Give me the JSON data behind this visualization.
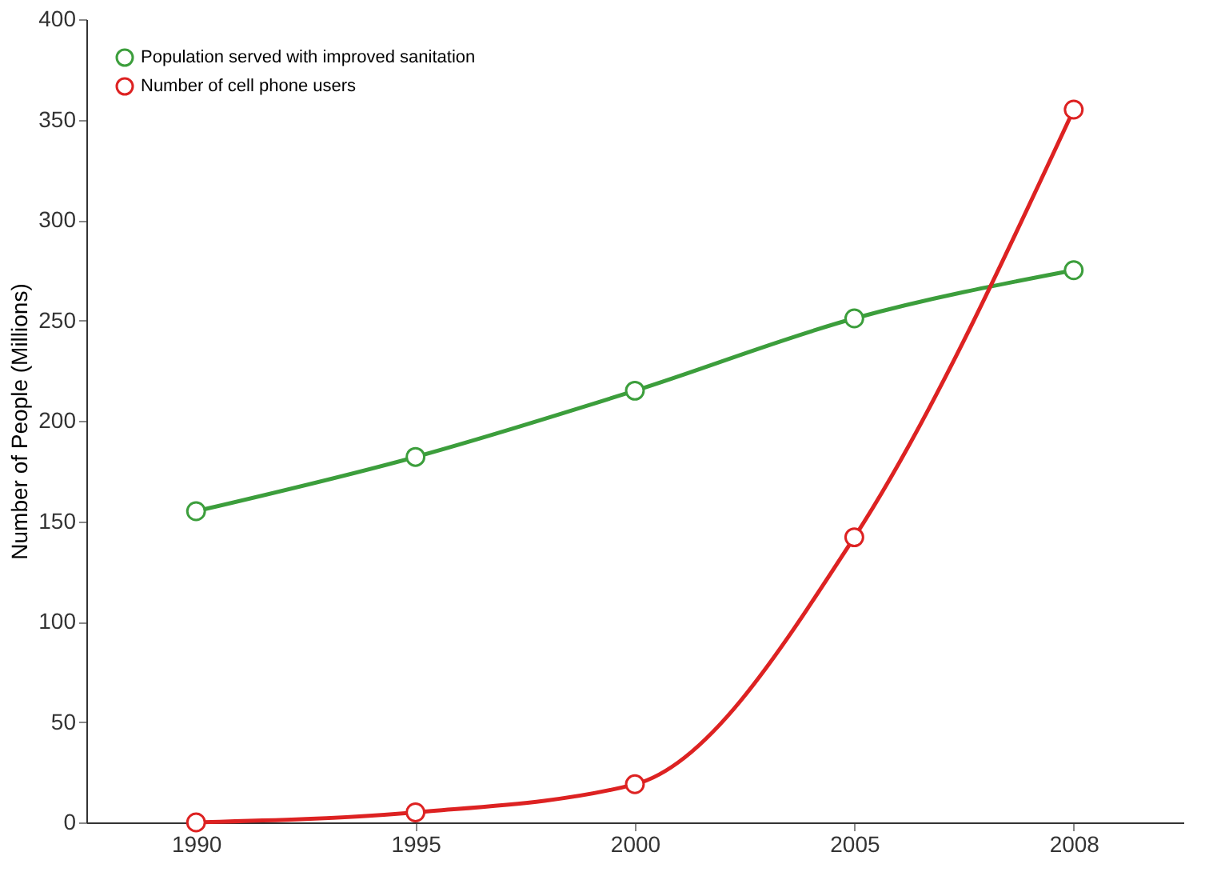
{
  "chart_data": {
    "type": "line",
    "ylabel": "Number of People (Millions)",
    "categories": [
      "1990",
      "1995",
      "2000",
      "2005",
      "2008"
    ],
    "series": [
      {
        "name": "Population served with improved sanitation",
        "color": "#3c9e3c",
        "values": [
          155,
          182,
          215,
          251,
          275
        ]
      },
      {
        "name": "Number of cell phone users",
        "color": "#dd2222",
        "values": [
          0,
          5,
          19,
          142,
          355
        ]
      }
    ],
    "ylim": [
      0,
      400
    ],
    "yticks": [
      0,
      50,
      100,
      150,
      200,
      250,
      300,
      350,
      400
    ],
    "grid": false,
    "legend": "top left",
    "marker": "circle",
    "line_style": "solid"
  }
}
